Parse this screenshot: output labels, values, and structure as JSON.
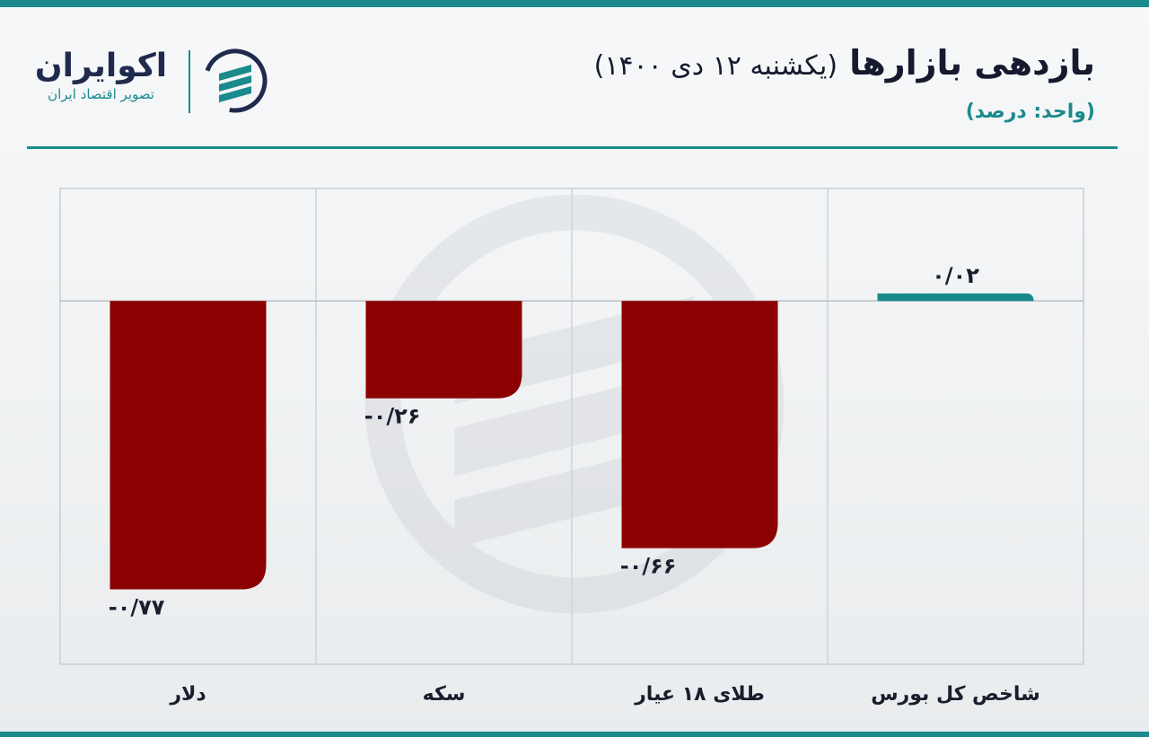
{
  "header": {
    "title": "بازدهی بازارها",
    "date": "(یکشنبه ۱۲ دی ۱۴۰۰)",
    "unit": "(واحد: درصد)"
  },
  "logo": {
    "name": "اکوایران",
    "tagline": "تصویر اقتصاد ایران"
  },
  "colors": {
    "positive": "#178a8a",
    "negative": "#8b0000",
    "accent": "#1a8a8c"
  },
  "chart_data": {
    "type": "bar",
    "categories": [
      "دلار",
      "سکه",
      "طلای ۱۸ عیار",
      "شاخص کل بورس"
    ],
    "values": [
      -0.77,
      -0.26,
      -0.66,
      0.02
    ],
    "labels": [
      "-۰/۷۷",
      "-۰/۲۶",
      "-۰/۶۶",
      "۰/۰۲"
    ],
    "ylim": [
      -0.97,
      0.3
    ],
    "grid": true
  }
}
